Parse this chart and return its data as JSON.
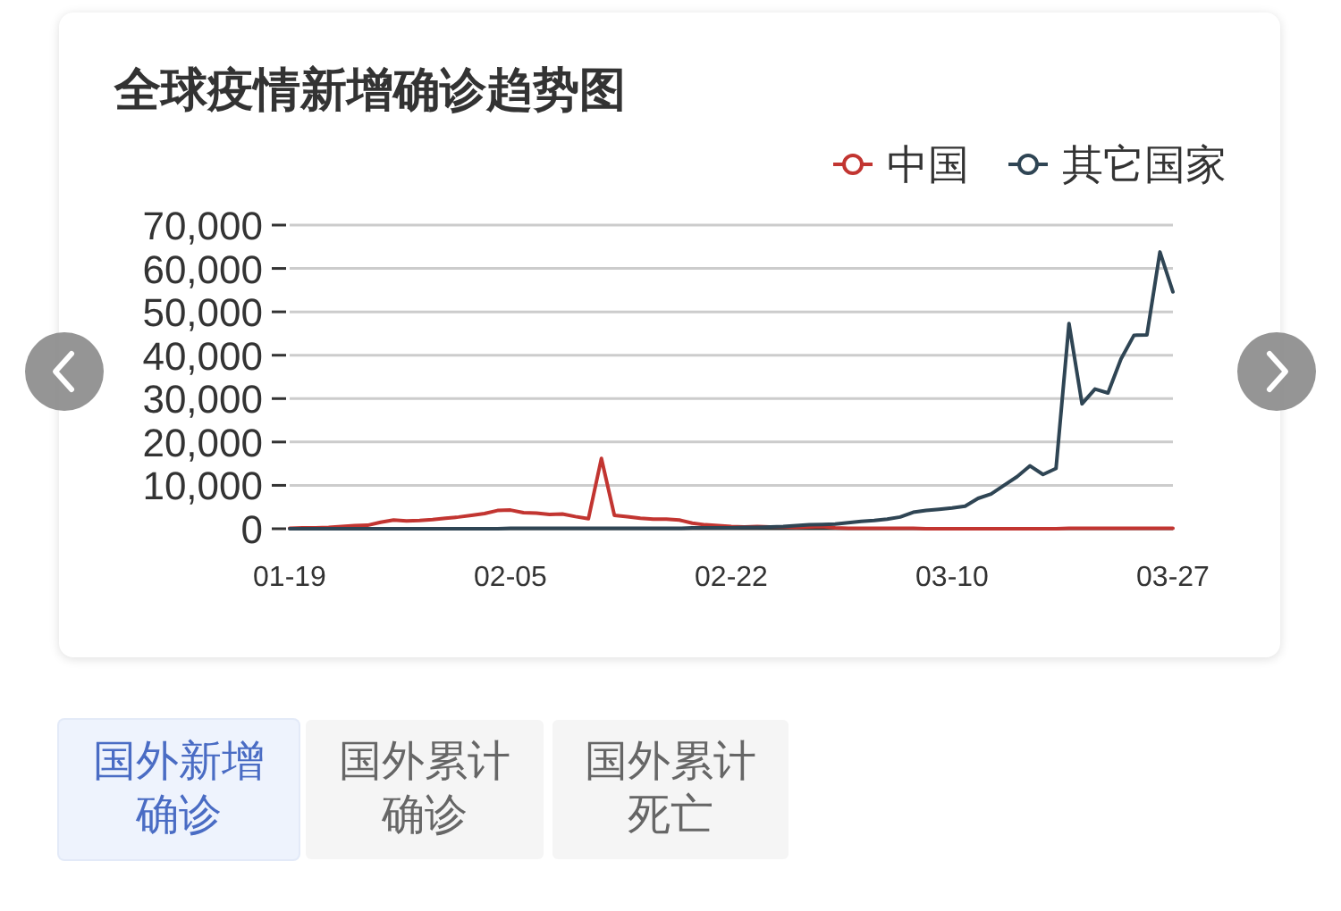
{
  "chart_data": {
    "type": "line",
    "title": "全球疫情新增确诊趋势图",
    "categories": [
      "01-19",
      null,
      null,
      null,
      null,
      null,
      null,
      null,
      null,
      null,
      null,
      null,
      null,
      null,
      null,
      null,
      null,
      "02-05",
      null,
      null,
      null,
      null,
      null,
      null,
      null,
      null,
      null,
      null,
      null,
      null,
      null,
      null,
      null,
      null,
      "02-22",
      null,
      null,
      null,
      null,
      null,
      null,
      null,
      null,
      null,
      null,
      null,
      null,
      null,
      null,
      null,
      null,
      "03-10",
      null,
      null,
      null,
      null,
      null,
      null,
      null,
      null,
      null,
      null,
      null,
      null,
      null,
      null,
      null,
      null,
      "03-27"
    ],
    "series": [
      {
        "name": "中国",
        "color": "#c23531",
        "values": [
          100,
          200,
          200,
          300,
          500,
          700,
          800,
          1500,
          2000,
          1800,
          1900,
          2100,
          2400,
          2700,
          3100,
          3500,
          4200,
          4300,
          3700,
          3600,
          3300,
          3400,
          2800,
          2300,
          16200,
          3100,
          2800,
          2400,
          2200,
          2200,
          2000,
          1300,
          900,
          700,
          500,
          400,
          500,
          400,
          400,
          300,
          400,
          500,
          200,
          100,
          100,
          100,
          100,
          100,
          100,
          0,
          0,
          0,
          0,
          0,
          0,
          0,
          0,
          0,
          0,
          0,
          100,
          100,
          100,
          100,
          100,
          100,
          100,
          100,
          100
        ]
      },
      {
        "name": "其它国家",
        "color": "#2f4554",
        "values": [
          0,
          0,
          0,
          0,
          0,
          0,
          0,
          0,
          0,
          0,
          0,
          0,
          0,
          0,
          0,
          0,
          0,
          100,
          100,
          100,
          100,
          100,
          100,
          100,
          100,
          100,
          100,
          100,
          100,
          100,
          100,
          200,
          200,
          200,
          200,
          300,
          300,
          400,
          500,
          700,
          900,
          1000,
          1100,
          1400,
          1700,
          1900,
          2200,
          2700,
          3800,
          4200,
          4500,
          4800,
          5200,
          7000,
          8000,
          10000,
          12000,
          14500,
          12500,
          13900,
          47300,
          28800,
          32200,
          31300,
          39100,
          44600,
          44700,
          63800,
          54600
        ]
      }
    ],
    "ylim": [
      0,
      70000
    ],
    "yticks": [
      0,
      {
        "value": 10000,
        "label": "10,000"
      },
      {
        "value": 20000,
        "label": "20,000"
      },
      {
        "value": 30000,
        "label": "30,000"
      },
      {
        "value": 40000,
        "label": "40,000"
      },
      {
        "value": 50000,
        "label": "50,000"
      },
      {
        "value": 60000,
        "label": "60,000"
      },
      {
        "value": 70000,
        "label": "70,000"
      }
    ],
    "grid": "y",
    "legend": "top right",
    "annotations": [
      "国外新增确诊",
      "国外累计确诊",
      "国外累计死亡"
    ]
  }
}
